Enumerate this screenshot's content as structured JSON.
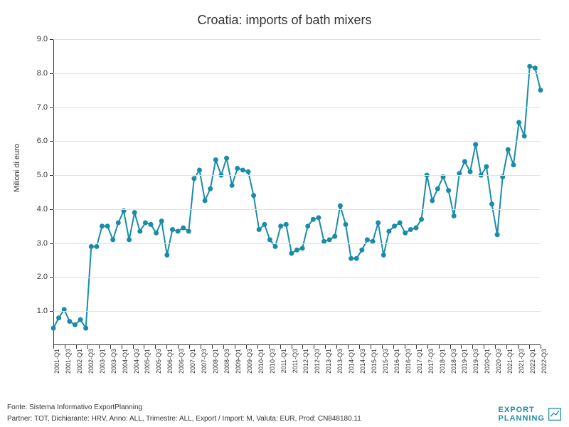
{
  "chart": {
    "type": "line",
    "title": "Croatia: imports of bath mixers",
    "ylabel": "Milioni di euro",
    "title_fontsize": 18,
    "label_fontsize": 11,
    "tick_fontsize": 11,
    "xtick_fontsize": 9,
    "line_color": "#1a8ca8",
    "line_width": 2,
    "marker_size": 3.5,
    "marker_style": "circle",
    "background_color": "#ffffff",
    "grid_color": "#e0e0e0",
    "axis_color": "#333333",
    "ylim": [
      0,
      9.0
    ],
    "ytick_step": 1.0,
    "yticks": [
      1.0,
      2.0,
      3.0,
      4.0,
      5.0,
      6.0,
      7.0,
      8.0,
      9.0
    ],
    "x_labels": [
      "2001-Q1",
      "2001-Q3",
      "2002-Q1",
      "2002-Q3",
      "2003-Q1",
      "2003-Q3",
      "2004-Q1",
      "2004-Q3",
      "2005-Q1",
      "2005-Q3",
      "2006-Q1",
      "2006-Q3",
      "2007-Q1",
      "2007-Q3",
      "2008-Q1",
      "2008-Q3",
      "2009-Q1",
      "2009-Q3",
      "2010-Q1",
      "2010-Q3",
      "2011-Q1",
      "2011-Q3",
      "2012-Q1",
      "2012-Q3",
      "2013-Q1",
      "2013-Q3",
      "2014-Q1",
      "2014-Q3",
      "2015-Q1",
      "2015-Q3",
      "2016-Q1",
      "2016-Q3",
      "2017-Q1",
      "2017-Q3",
      "2018-Q1",
      "2018-Q3",
      "2019-Q1",
      "2019-Q3",
      "2020-Q1",
      "2020-Q3",
      "2021-Q1",
      "2021-Q3",
      "2022-Q1",
      "2022-Q3"
    ],
    "values": [
      0.5,
      0.8,
      1.05,
      0.7,
      0.6,
      0.75,
      0.5,
      2.9,
      2.9,
      3.5,
      3.5,
      3.1,
      3.6,
      3.95,
      3.1,
      3.9,
      3.35,
      3.6,
      3.55,
      3.3,
      3.65,
      2.65,
      3.4,
      3.35,
      3.45,
      3.35,
      4.9,
      5.15,
      4.25,
      4.6,
      5.45,
      5.0,
      5.5,
      4.7,
      5.2,
      5.15,
      5.1,
      4.4,
      3.4,
      3.55,
      3.1,
      2.9,
      3.5,
      3.55,
      2.7,
      2.8,
      2.85,
      3.5,
      3.7,
      3.75,
      3.05,
      3.1,
      3.2,
      4.1,
      3.55,
      2.55,
      2.55,
      2.8,
      3.1,
      3.05,
      3.6,
      2.65,
      3.35,
      3.5,
      3.6,
      3.3,
      3.4,
      3.45,
      3.7,
      5.0,
      4.25,
      4.6,
      4.95,
      4.55,
      3.8,
      5.05,
      5.4,
      5.1,
      5.9,
      5.0,
      5.25,
      4.15,
      3.25,
      4.95,
      5.75,
      5.3,
      6.55,
      6.15,
      8.2,
      8.15,
      7.5
    ]
  },
  "footer": {
    "line1": "Fonte: Sistema Informativo ExportPlanning",
    "line2": "Partner: TOT, Dichiarante: HRV, Anno: ALL, Trimestre: ALL, Export / Import: M, Valuta: EUR, Prod: CN848180.11"
  },
  "logo": {
    "text1": "EXPORT",
    "text2": "PLANNING",
    "color": "#1a8ca8"
  }
}
